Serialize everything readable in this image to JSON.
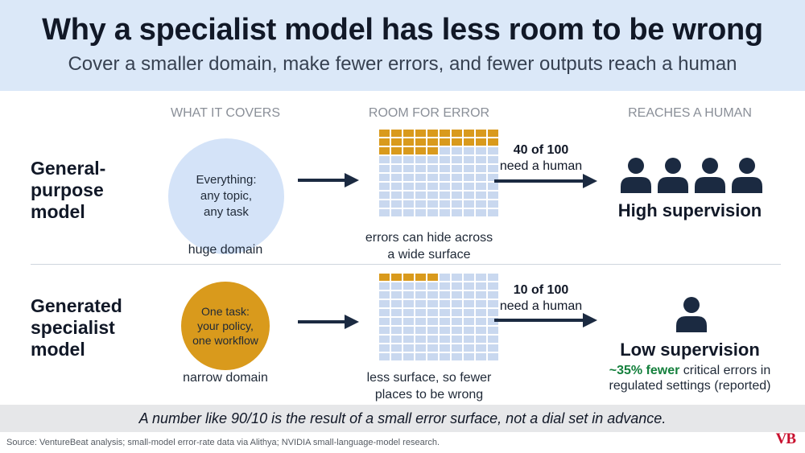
{
  "header": {
    "title": "Why a specialist model has less room to be wrong",
    "subtitle": "Cover a smaller domain, make fewer errors, and fewer outputs reach a human"
  },
  "columns": {
    "covers": "WHAT IT COVERS",
    "error": "ROOM FOR ERROR",
    "human": "REACHES A HUMAN"
  },
  "rows": [
    {
      "label": "General-\npurpose\nmodel",
      "circle_text": "Everything:\nany topic,\nany task",
      "circle_color": "#d4e3f8",
      "domain_caption": "huge domain",
      "error_cells": 25,
      "error_caption": "errors can hide across\na wide surface",
      "flow_count": "40 of 100",
      "flow_text": "need a human",
      "people_count": 4,
      "supervision": "High supervision"
    },
    {
      "label": "Generated\nspecialist\nmodel",
      "circle_text": "One task:\nyour policy,\none workflow",
      "circle_color": "#d99a1c",
      "domain_caption": "narrow domain",
      "error_cells": 5,
      "error_caption": "less surface, so fewer\nplaces to be wrong",
      "flow_count": "10 of 100",
      "flow_text": "need a human",
      "people_count": 1,
      "supervision": "Low supervision",
      "stat_highlight": "~35% fewer",
      "stat_rest": " critical errors in",
      "stat_line2": "regulated settings (reported)"
    }
  ],
  "footer": {
    "note": "A number like 90/10 is the result of a small error surface, not a dial set in advance.",
    "source": "Source: VentureBeat analysis; small-model error-rate data via Alithya; NVIDIA small-language-model research.",
    "logo": "VB"
  },
  "colors": {
    "error": "#d99a1c",
    "surface": "#c9d8ef",
    "accent_green": "#15803d",
    "navy": "#1b2a41"
  }
}
